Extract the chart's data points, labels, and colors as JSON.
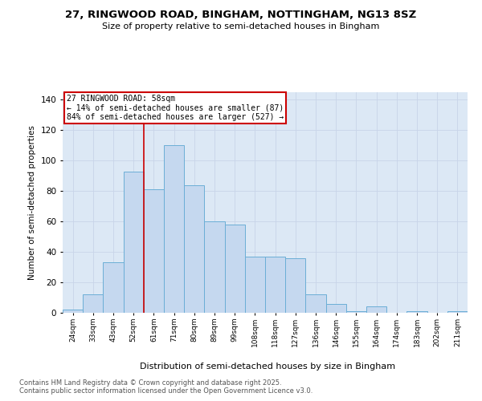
{
  "title": "27, RINGWOOD ROAD, BINGHAM, NOTTINGHAM, NG13 8SZ",
  "subtitle": "Size of property relative to semi-detached houses in Bingham",
  "xlabel": "Distribution of semi-detached houses by size in Bingham",
  "ylabel": "Number of semi-detached properties",
  "footnote1": "Contains HM Land Registry data © Crown copyright and database right 2025.",
  "footnote2": "Contains public sector information licensed under the Open Government Licence v3.0.",
  "categories": [
    "24sqm",
    "33sqm",
    "43sqm",
    "52sqm",
    "61sqm",
    "71sqm",
    "80sqm",
    "89sqm",
    "99sqm",
    "108sqm",
    "118sqm",
    "127sqm",
    "136sqm",
    "146sqm",
    "155sqm",
    "164sqm",
    "174sqm",
    "183sqm",
    "202sqm",
    "211sqm"
  ],
  "values": [
    2,
    12,
    33,
    93,
    81,
    110,
    84,
    60,
    58,
    37,
    37,
    36,
    12,
    6,
    1,
    4,
    0,
    1,
    0,
    1
  ],
  "bar_color": "#c5d8ef",
  "bar_edge_color": "#6baed6",
  "grid_color": "#c8d4e8",
  "background_color": "#ffffff",
  "plot_bg_color": "#dce8f5",
  "red_line_x": 3.5,
  "property_size": 58,
  "pct_smaller": 14,
  "n_smaller": 87,
  "pct_larger": 84,
  "n_larger": 527,
  "annotation_box_color": "#ffffff",
  "annotation_border_color": "#cc0000",
  "ylim": [
    0,
    145
  ],
  "yticks": [
    0,
    20,
    40,
    60,
    80,
    100,
    120,
    140
  ]
}
